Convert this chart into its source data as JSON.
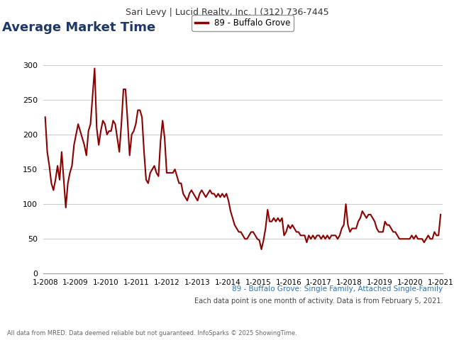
{
  "header_text": "Sari Levy | Lucid Realty, Inc. | (312) 736-7445",
  "title": "Average Market Time",
  "legend_label": "89 - Buffalo Grove",
  "subtitle1": "89 - Buffalo Grove: Single Family, Attached Single-Family",
  "subtitle2": "Each data point is one month of activity. Data is from February 5, 2021.",
  "footer": "All data from MRED. Data deemed reliable but not guaranteed. InfoSparks © 2025 ShowingTime.",
  "line_color": "#8B0000",
  "title_color": "#1f3864",
  "subtitle_color": "#2e74b5",
  "header_bg": "#e8e8e8",
  "yticks": [
    0,
    50,
    100,
    150,
    200,
    250,
    300
  ],
  "ylim": [
    0,
    320
  ],
  "xtick_labels": [
    "1-2008",
    "1-2009",
    "1-2010",
    "1-2011",
    "1-2012",
    "1-2013",
    "1-2014",
    "1-2015",
    "1-2016",
    "1-2017",
    "1-2018",
    "1-2019",
    "1-2020",
    "1-2021"
  ],
  "values": [
    225,
    175,
    155,
    130,
    120,
    135,
    155,
    135,
    175,
    135,
    95,
    130,
    145,
    155,
    185,
    200,
    215,
    205,
    195,
    185,
    170,
    205,
    215,
    255,
    295,
    210,
    185,
    205,
    220,
    215,
    200,
    205,
    205,
    220,
    215,
    195,
    175,
    215,
    265,
    265,
    220,
    170,
    200,
    205,
    215,
    235,
    235,
    225,
    175,
    135,
    130,
    145,
    150,
    155,
    145,
    140,
    190,
    220,
    195,
    145,
    145,
    145,
    145,
    150,
    140,
    130,
    130,
    115,
    110,
    105,
    115,
    120,
    115,
    110,
    105,
    115,
    120,
    115,
    110,
    115,
    120,
    115,
    115,
    110,
    115,
    110,
    115,
    110,
    115,
    105,
    90,
    80,
    70,
    65,
    60,
    60,
    55,
    50,
    50,
    55,
    60,
    60,
    55,
    50,
    48,
    35,
    48,
    65,
    92,
    75,
    75,
    80,
    75,
    80,
    75,
    80,
    55,
    60,
    70,
    65,
    70,
    65,
    60,
    60,
    55,
    55,
    55,
    45,
    55,
    50,
    55,
    50,
    55,
    55,
    50,
    55,
    50,
    55,
    50,
    55,
    55,
    55,
    50,
    55,
    65,
    70,
    100,
    70,
    60,
    65,
    65,
    65,
    75,
    80,
    90,
    85,
    80,
    85,
    85,
    80,
    75,
    65,
    60,
    60,
    60,
    75,
    70,
    70,
    65,
    60,
    60,
    55,
    50,
    50,
    50,
    50,
    50,
    50,
    55,
    50,
    55,
    50,
    50,
    50,
    45,
    50,
    55,
    50,
    50,
    60,
    55,
    55,
    85
  ]
}
